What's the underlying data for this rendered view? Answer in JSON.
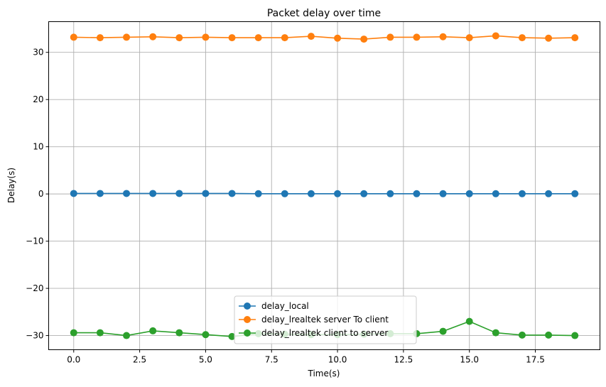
{
  "chart_data": {
    "type": "line",
    "title": "Packet delay over time",
    "xlabel": "Time(s)",
    "ylabel": "Delay(s)",
    "xlim": [
      -0.95,
      19.95
    ],
    "ylim": [
      -33,
      36.5
    ],
    "x_ticks": [
      0,
      2.5,
      5,
      7.5,
      10,
      12.5,
      15,
      17.5
    ],
    "x_tick_labels": [
      "0.0",
      "2.5",
      "5.0",
      "7.5",
      "10.0",
      "12.5",
      "15.0",
      "17.5"
    ],
    "y_ticks": [
      -30,
      -20,
      -10,
      0,
      10,
      20,
      30
    ],
    "y_tick_labels": [
      "−30",
      "−20",
      "−10",
      "0",
      "10",
      "20",
      "30"
    ],
    "grid": true,
    "legend_position": "bottom-center",
    "x": [
      0,
      1,
      2,
      3,
      4,
      5,
      6,
      7,
      8,
      9,
      10,
      11,
      12,
      13,
      14,
      15,
      16,
      17,
      18,
      19
    ],
    "series": [
      {
        "name": "delay_local",
        "color": "#1f77b4",
        "values": [
          0.1,
          0.1,
          0.1,
          0.1,
          0.1,
          0.1,
          0.1,
          0.05,
          0.05,
          0.05,
          0.05,
          0.05,
          0.05,
          0.05,
          0.05,
          0.05,
          0.05,
          0.05,
          0.05,
          0.05
        ]
      },
      {
        "name": "delay_lrealtek server To client",
        "color": "#ff7f0e",
        "values": [
          33.2,
          33.1,
          33.2,
          33.3,
          33.1,
          33.2,
          33.1,
          33.1,
          33.1,
          33.4,
          33.0,
          32.8,
          33.2,
          33.2,
          33.3,
          33.1,
          33.5,
          33.1,
          33.0,
          33.1
        ]
      },
      {
        "name": "delay_lrealtek client to server",
        "color": "#2ca02c",
        "values": [
          -29.4,
          -29.4,
          -30.0,
          -29.0,
          -29.4,
          -29.8,
          -30.2,
          -29.6,
          -29.7,
          -29.8,
          -29.8,
          -29.7,
          -29.6,
          -29.6,
          -29.1,
          -27.0,
          -29.4,
          -29.9,
          -29.9,
          -30.0
        ]
      }
    ]
  }
}
